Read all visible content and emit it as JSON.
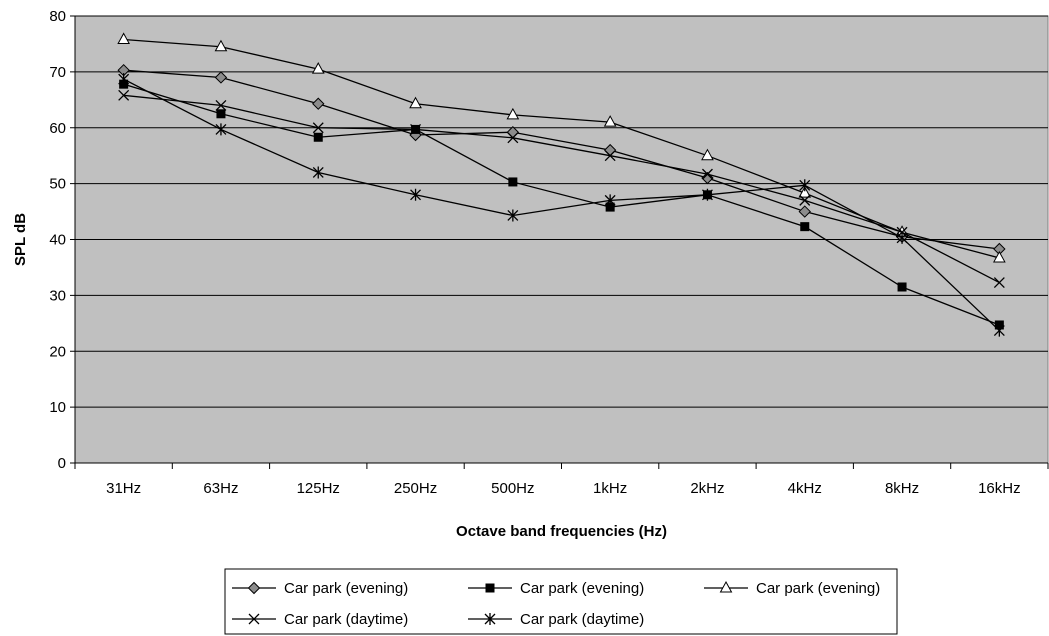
{
  "chart_data": {
    "type": "line",
    "title": "",
    "xlabel": "Octave band frequencies (Hz)",
    "ylabel": "SPL dB",
    "ylim": [
      0,
      80
    ],
    "yticks": [
      "0",
      "10",
      "20",
      "30",
      "40",
      "50",
      "60",
      "70",
      "80"
    ],
    "grid": true,
    "legend_position": "bottom",
    "plot_background": "#c0c0c0",
    "categories": [
      "31Hz",
      "63Hz",
      "125Hz",
      "250Hz",
      "500Hz",
      "1kHz",
      "2kHz",
      "4kHz",
      "8kHz",
      "16kHz"
    ],
    "series": [
      {
        "name": "Car park (evening)",
        "marker": "diamond-filled-gray",
        "values": [
          70.3,
          69.0,
          64.3,
          58.7,
          59.2,
          56.0,
          51.0,
          45.0,
          40.5,
          38.3
        ]
      },
      {
        "name": "Car park (evening)",
        "marker": "square-filled-black",
        "values": [
          67.8,
          62.5,
          58.3,
          59.7,
          50.3,
          45.8,
          48.0,
          42.3,
          31.5,
          24.7
        ]
      },
      {
        "name": "Car park (evening)",
        "marker": "triangle-open",
        "values": [
          75.8,
          74.5,
          70.5,
          64.3,
          62.3,
          61.0,
          55.0,
          48.3,
          41.3,
          36.7
        ]
      },
      {
        "name": "Car park (daytime)",
        "marker": "x-cross",
        "values": [
          65.8,
          64.0,
          60.0,
          59.7,
          58.2,
          55.0,
          51.7,
          47.0,
          41.3,
          32.3
        ]
      },
      {
        "name": "Car park (daytime)",
        "marker": "asterisk",
        "values": [
          68.7,
          59.7,
          52.0,
          48.0,
          44.3,
          47.0,
          48.0,
          49.7,
          40.3,
          23.7
        ]
      }
    ]
  }
}
